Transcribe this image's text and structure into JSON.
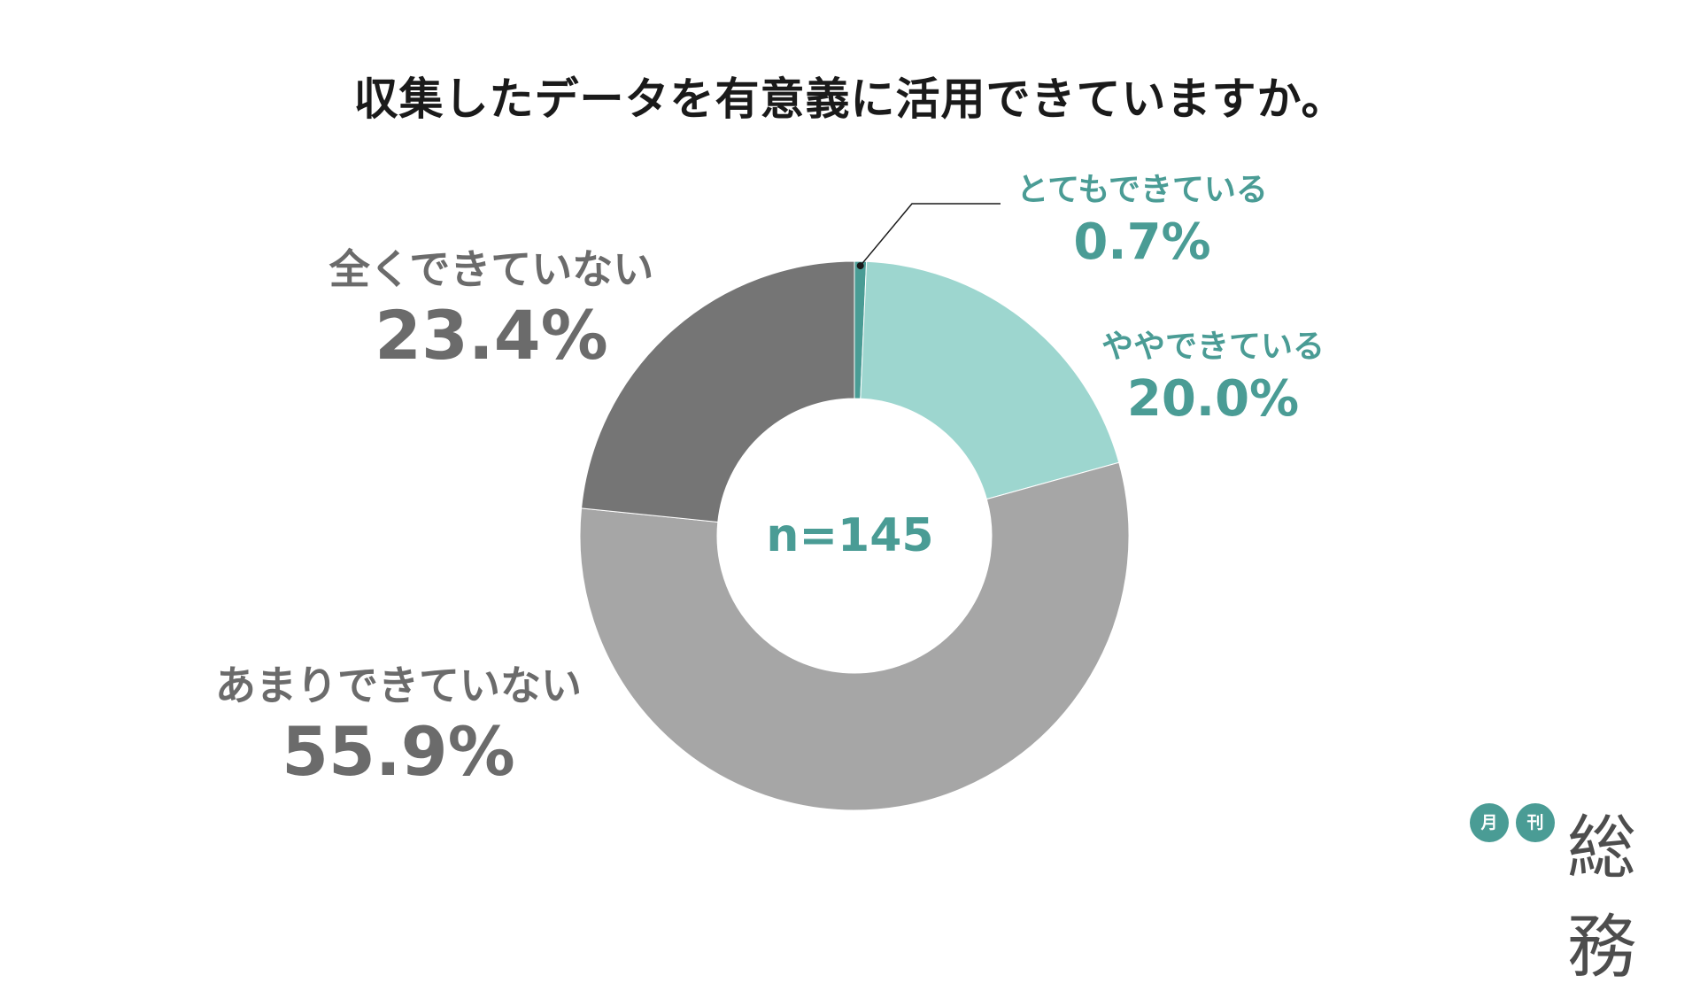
{
  "title": "収集したデータを有意義に活用できていますか。",
  "center_label": "n=145",
  "colors": {
    "very": "#4a9c95",
    "somewhat": "#9dd6cf",
    "not_much": "#a6a6a6",
    "not_at_all": "#757575",
    "label_teal": "#4a9c95",
    "label_gray": "#6b6b6b"
  },
  "chart_data": {
    "type": "pie",
    "donut": true,
    "title": "収集したデータを有意義に活用できていますか。",
    "n": "n=145",
    "slices": [
      {
        "label": "とてもできている",
        "value": 0.7,
        "display": "0.7%",
        "color": "#4a9c95"
      },
      {
        "label": "ややできている",
        "value": 20.0,
        "display": "20.0%",
        "color": "#9dd6cf"
      },
      {
        "label": "あまりできていない",
        "value": 55.9,
        "display": "55.9%",
        "color": "#a6a6a6"
      },
      {
        "label": "全くできていない",
        "value": 23.4,
        "display": "23.4%",
        "color": "#757575"
      }
    ]
  },
  "logo": {
    "badge1": "月",
    "badge2": "刊",
    "word": "総務"
  }
}
